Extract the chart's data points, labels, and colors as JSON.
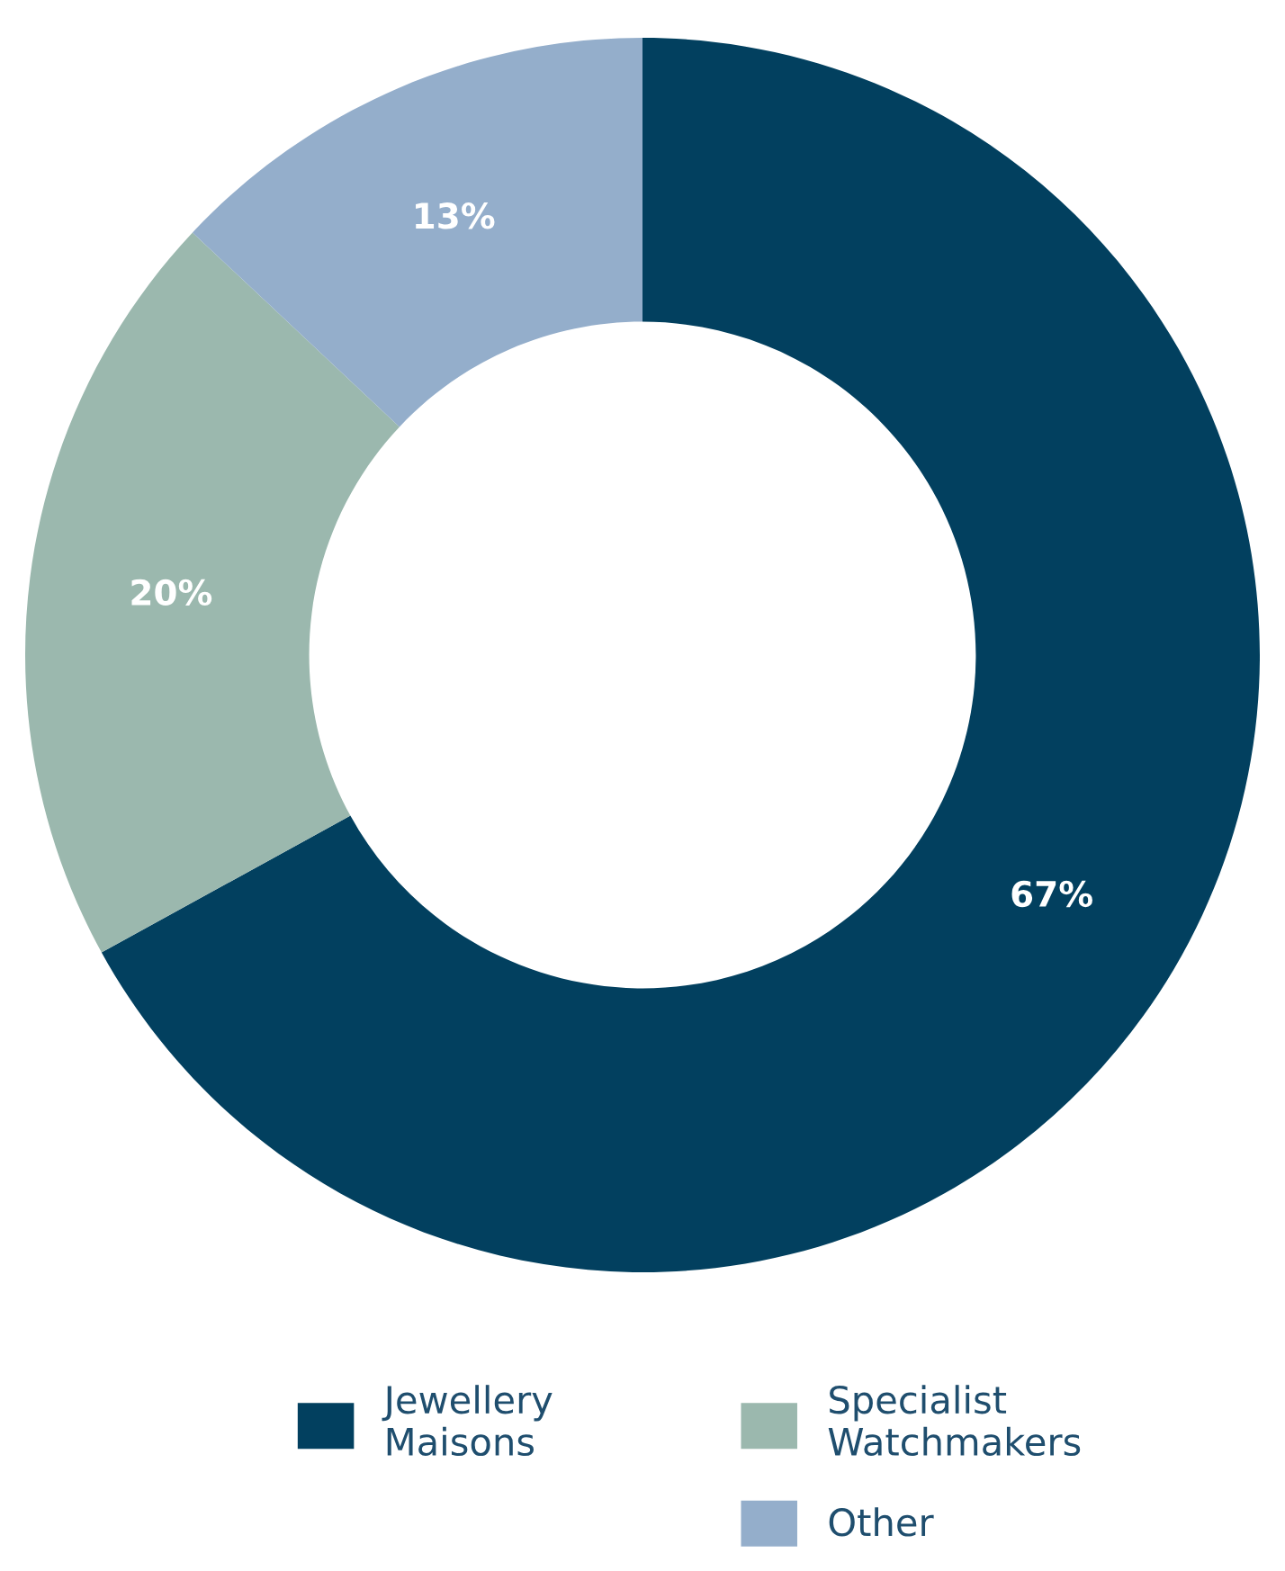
{
  "chart_data": {
    "type": "donut",
    "categories": [
      "Jewellery\nMaisons",
      "Specialist\nWatchmakers",
      "Other"
    ],
    "values": [
      67,
      20,
      13
    ],
    "colors": [
      "#02405f",
      "#9bb8ae",
      "#94aecb"
    ],
    "value_labels": [
      "67%",
      "20%",
      "13%"
    ],
    "legend": "bottom"
  }
}
